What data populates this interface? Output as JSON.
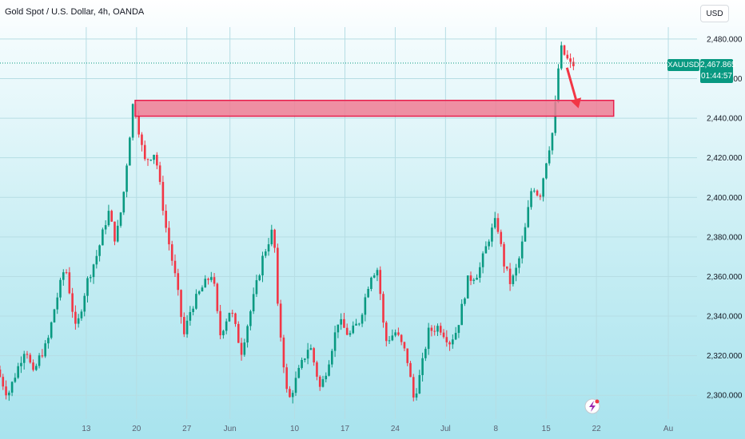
{
  "header": {
    "symbol_title": "Gold Spot / U.S. Dollar, 4h, OANDA",
    "currency": "USD"
  },
  "price_tag": {
    "symbol": "XAUUSD",
    "price": "2,467.865",
    "countdown": "01:44:57"
  },
  "colors": {
    "up": "#089981",
    "down": "#f23645",
    "zone_fill": "#f07c93",
    "zone_border": "#e91e4c",
    "arrow": "#f23645",
    "price_tag": "#089981"
  },
  "chart_data": {
    "type": "candlestick",
    "title": "Gold Spot / U.S. Dollar, 4h, OANDA",
    "ylim": [
      2288,
      2486
    ],
    "y_ticks": [
      "2,480.000",
      "2,460.000",
      "2,440.000",
      "2,420.000",
      "2,400.000",
      "2,380.000",
      "2,360.000",
      "2,340.000",
      "2,320.000",
      "2,300.000"
    ],
    "y_tick_values": [
      2480,
      2460,
      2440,
      2420,
      2400,
      2380,
      2360,
      2340,
      2320,
      2300
    ],
    "x_ticks": [
      "13",
      "20",
      "27",
      "Jun",
      "10",
      "17",
      "24",
      "Jul",
      "8",
      "15",
      "22",
      "Au"
    ],
    "x_tick_days": [
      12,
      19,
      26,
      32,
      41,
      48,
      55,
      62,
      69,
      76,
      83,
      93
    ],
    "x_range_days": [
      0,
      97
    ],
    "last_price": 2467.865,
    "resistance_zone": {
      "low": 2441,
      "high": 2449,
      "start_day": 18.8,
      "end_day": 85.4
    },
    "arrow": {
      "from": [
        78.9,
        2465.5
      ],
      "to": [
        80.5,
        2445
      ]
    },
    "swing_points": [
      [
        0.0,
        2313
      ],
      [
        1.5,
        2300
      ],
      [
        3.2,
        2317
      ],
      [
        4.0,
        2325
      ],
      [
        5.0,
        2310
      ],
      [
        6.0,
        2320
      ],
      [
        7.0,
        2326
      ],
      [
        8.0,
        2344
      ],
      [
        9.5,
        2366
      ],
      [
        11.0,
        2332
      ],
      [
        12.5,
        2357
      ],
      [
        14.0,
        2372
      ],
      [
        15.5,
        2393
      ],
      [
        16.5,
        2378
      ],
      [
        17.5,
        2398
      ],
      [
        19.0,
        2450
      ],
      [
        20.5,
        2418
      ],
      [
        22.0,
        2423
      ],
      [
        23.5,
        2385
      ],
      [
        25.0,
        2356
      ],
      [
        26.0,
        2330
      ],
      [
        27.0,
        2344
      ],
      [
        28.5,
        2354
      ],
      [
        30.0,
        2362
      ],
      [
        31.0,
        2330
      ],
      [
        32.5,
        2344
      ],
      [
        34.0,
        2322
      ],
      [
        35.5,
        2346
      ],
      [
        37.0,
        2370
      ],
      [
        38.5,
        2385
      ],
      [
        39.0,
        2346
      ],
      [
        40.5,
        2296
      ],
      [
        42.0,
        2312
      ],
      [
        43.5,
        2326
      ],
      [
        45.0,
        2303
      ],
      [
        46.0,
        2315
      ],
      [
        47.5,
        2338
      ],
      [
        49.0,
        2330
      ],
      [
        50.5,
        2338
      ],
      [
        52.0,
        2361
      ],
      [
        53.0,
        2364
      ],
      [
        54.0,
        2327
      ],
      [
        55.5,
        2332
      ],
      [
        57.0,
        2320
      ],
      [
        58.0,
        2298
      ],
      [
        59.0,
        2312
      ],
      [
        60.0,
        2332
      ],
      [
        61.5,
        2335
      ],
      [
        63.0,
        2327
      ],
      [
        64.0,
        2333
      ],
      [
        65.5,
        2358
      ],
      [
        67.0,
        2362
      ],
      [
        68.5,
        2380
      ],
      [
        69.5,
        2389
      ],
      [
        70.5,
        2367
      ],
      [
        71.5,
        2356
      ],
      [
        72.5,
        2366
      ],
      [
        73.5,
        2384
      ],
      [
        74.5,
        2407
      ],
      [
        75.5,
        2400
      ],
      [
        76.5,
        2420
      ],
      [
        77.5,
        2436
      ],
      [
        78.0,
        2462
      ],
      [
        78.5,
        2475
      ],
      [
        79.3,
        2470
      ],
      [
        79.8,
        2467
      ]
    ]
  }
}
